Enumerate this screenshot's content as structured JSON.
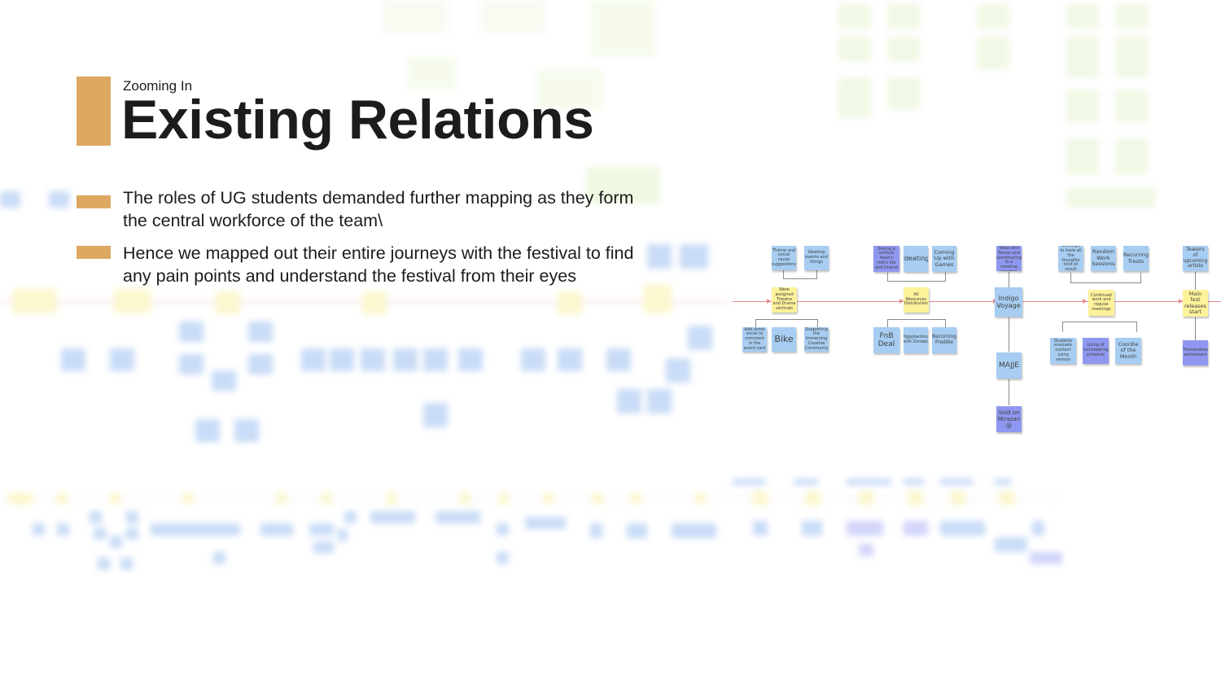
{
  "slide": {
    "subtitle": "Zooming In",
    "title": "Existing Relations",
    "bullets": [
      "The roles of UG students demanded further mapping as they form the central workforce of the team\\",
      "Hence we mapped out their entire journeys with the festival to find any pain points and understand the festival from their eyes"
    ],
    "accent_color": "#dca862"
  },
  "journey_map": {
    "stage1": {
      "top": [
        "Theme and social cause suggestions",
        "Ideating events and things"
      ],
      "middle": "Were assigned Theatre and Drama verticals",
      "bottom": [
        "Add some social to comment in the event card",
        "Bike",
        "Supporting the Immersing Creative Community"
      ]
    },
    "stage2": {
      "top": [
        "Seeing a vertical head's role's life and Drama",
        "Ideating",
        "Coming Up with Games"
      ],
      "middle": "All Resources Distribution",
      "bottom": [
        "FnB Deal",
        "Piggybacking with Zomato",
        "Becoming Freddie"
      ]
    },
    "stage3": {
      "top": "Working on Ideas and Teams and coordinating to a meeting vendors",
      "middle": "Indigo Voyage",
      "below": [
        "MAJJE",
        "Sold on Mirazan @"
      ]
    },
    "stage4": {
      "top": [
        "Nostalgia to have all the thoughts kind of result",
        "Random Work Sessions",
        "Recurring Treats"
      ],
      "middle": "Continued work and regular meetings",
      "bottom": [
        "Students evaluate content using various",
        "Going of volunteering schedule",
        "Coordie of the Month"
      ]
    },
    "stage5": {
      "top": "Teasers of upcoming artists",
      "middle": "Main fest releases start",
      "bottom": "Tremendous excitement"
    }
  }
}
